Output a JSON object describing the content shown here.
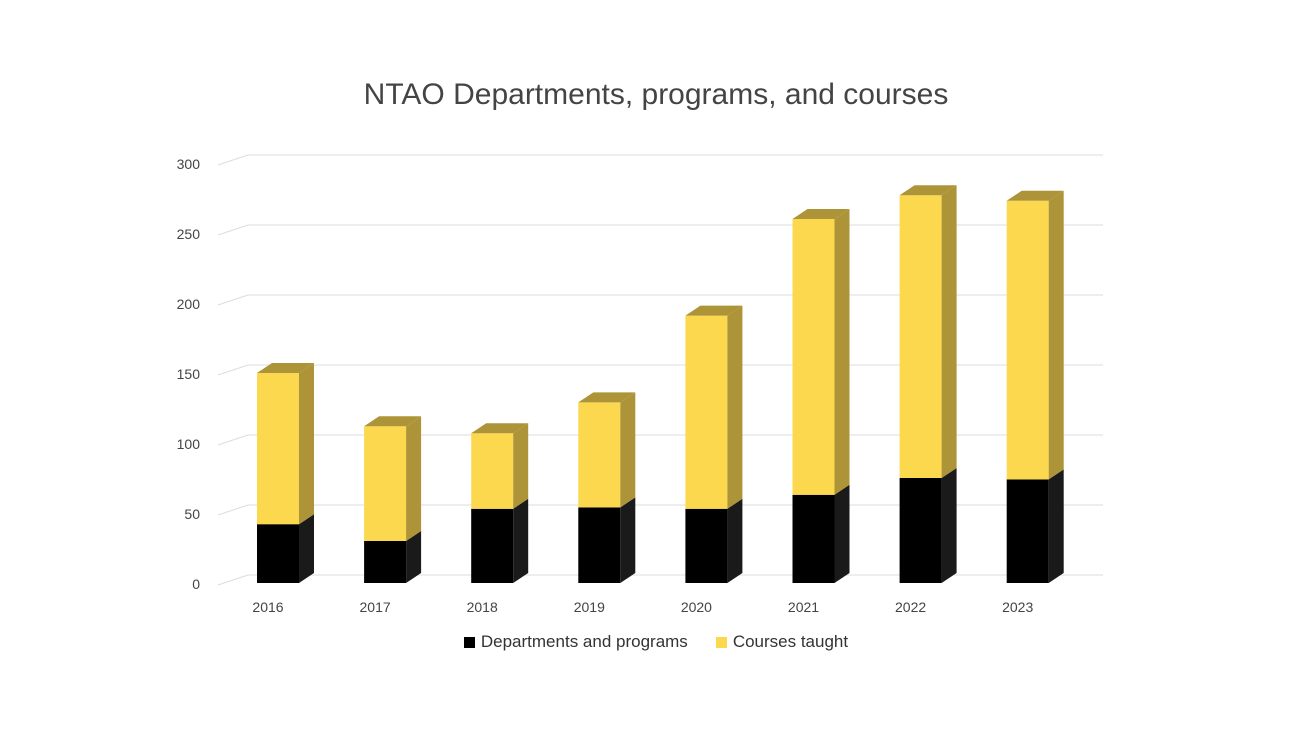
{
  "chart_data": {
    "type": "bar",
    "stacked": true,
    "style": "3d-column",
    "title": "NTAO Departments, programs, and courses",
    "xlabel": "",
    "ylabel": "",
    "categories": [
      "2016",
      "2017",
      "2018",
      "2019",
      "2020",
      "2021",
      "2022",
      "2023"
    ],
    "series": [
      {
        "name": "Departments and programs",
        "values": [
          42,
          30,
          53,
          54,
          53,
          63,
          75,
          74
        ],
        "color": "#000000",
        "side_color": "#1a1a1a"
      },
      {
        "name": "Courses taught",
        "values": [
          108,
          82,
          54,
          75,
          138,
          197,
          202,
          199
        ],
        "color": "#fcd84e",
        "side_color": "#ad9438"
      }
    ],
    "ylim": [
      0,
      300
    ],
    "yticks": [
      "0",
      "50",
      "100",
      "150",
      "200",
      "250",
      "300"
    ],
    "grid": true,
    "legend": "bottom"
  }
}
